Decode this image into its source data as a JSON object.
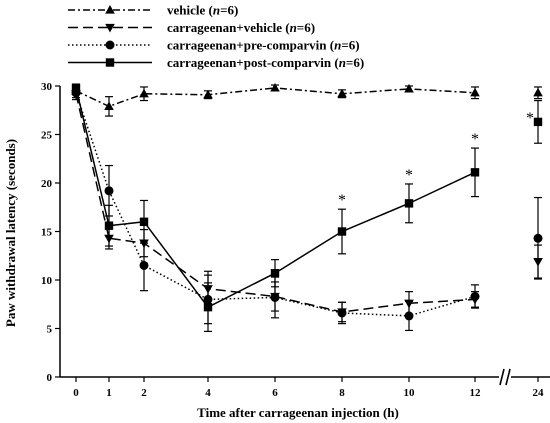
{
  "chart_data": {
    "type": "line",
    "title": "",
    "xlabel": "Time after carrageenan injection (h)",
    "ylabel": "Paw withdrawal latency (seconds)",
    "ylim": [
      0,
      30
    ],
    "yticks": [
      0,
      5,
      10,
      15,
      20,
      25,
      30
    ],
    "x": [
      0,
      1,
      2,
      4,
      6,
      8,
      10,
      12,
      24
    ],
    "xtick_labels": [
      "0",
      "1",
      "2",
      "4",
      "6",
      "8",
      "10",
      "12",
      "24"
    ],
    "axis_break": "between 12 and 24",
    "legend_position": "top",
    "grid": false,
    "series": [
      {
        "name": "vehicle",
        "n_label": "n",
        "n_value": "=6",
        "marker": "triangle-up",
        "dash": "dash-dot",
        "values": [
          29.5,
          27.9,
          29.2,
          29.1,
          29.8,
          29.2,
          29.7,
          29.3,
          29.3
        ],
        "errors": [
          0.4,
          1.0,
          0.7,
          0.4,
          0.3,
          0.4,
          0.3,
          0.6,
          0.6
        ]
      },
      {
        "name": "carrageenan+vehicle",
        "n_label": "n",
        "n_value": "=6",
        "marker": "triangle-down",
        "dash": "long-dash",
        "values": [
          29.2,
          14.3,
          13.8,
          9.1,
          8.3,
          6.7,
          7.6,
          8.0,
          11.9
        ],
        "errors": [
          0.6,
          1.1,
          1.4,
          1.8,
          1.5,
          1.0,
          1.2,
          0.8,
          1.7
        ]
      },
      {
        "name": "carrageenan+pre-comparvin",
        "n_label": "n",
        "n_value": "=6",
        "marker": "circle",
        "dash": "dotted",
        "values": [
          29.3,
          19.2,
          11.5,
          8.0,
          8.2,
          6.6,
          6.3,
          8.3,
          14.3
        ],
        "errors": [
          0.5,
          2.6,
          2.6,
          2.5,
          2.1,
          1.1,
          1.5,
          1.2,
          4.2
        ]
      },
      {
        "name": "carrageenan+post-comparvin",
        "n_label": "n",
        "n_value": "=6",
        "marker": "square",
        "dash": "solid",
        "values": [
          29.8,
          15.6,
          16.0,
          7.2,
          10.7,
          15.0,
          17.9,
          21.1,
          26.3
        ],
        "errors": [
          0.4,
          2.1,
          2.2,
          2.5,
          1.4,
          2.3,
          2.0,
          2.5,
          2.2
        ]
      }
    ],
    "significance": {
      "symbol": "*",
      "series": "carrageenan+post-comparvin",
      "x": [
        8,
        10,
        12,
        24
      ]
    }
  }
}
